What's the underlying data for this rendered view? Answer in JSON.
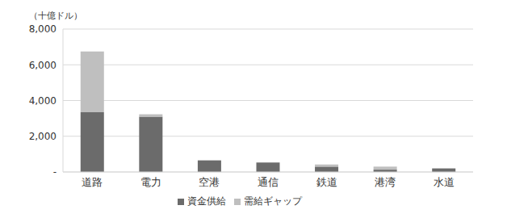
{
  "chart_data": {
    "type": "bar",
    "ylabel": "（十億ドル）",
    "categories": [
      "道路",
      "電力",
      "空港",
      "通信",
      "鉄道",
      "港湾",
      "水道"
    ],
    "series": [
      {
        "name": "資金供給",
        "color": "#6b6b6b",
        "values": [
          3350,
          3100,
          650,
          530,
          300,
          130,
          200
        ]
      },
      {
        "name": "需給ギャップ",
        "color": "#bfbfbf",
        "values": [
          3400,
          130,
          0,
          0,
          120,
          170,
          0
        ]
      }
    ],
    "stacked": true,
    "ylim": [
      0,
      8000
    ],
    "yticks": [
      {
        "value": 0,
        "label": "-"
      },
      {
        "value": 2000,
        "label": "2,000"
      },
      {
        "value": 4000,
        "label": "4,000"
      },
      {
        "value": 6000,
        "label": "6,000"
      },
      {
        "value": 8000,
        "label": "8,000"
      }
    ],
    "grid": true,
    "legend": "bottom"
  }
}
